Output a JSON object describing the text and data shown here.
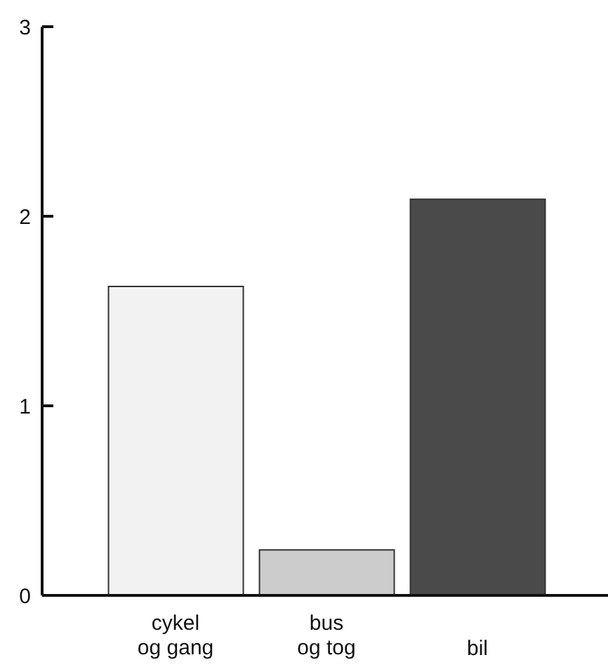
{
  "chart_data": {
    "type": "bar",
    "categories": [
      "cykel\nog gang",
      "bus\nog tog",
      "bil"
    ],
    "values": [
      1.63,
      0.24,
      2.09
    ],
    "colors": [
      "#f2f2f2",
      "#cccccc",
      "#4a4a4a"
    ],
    "ylim": [
      0,
      3
    ],
    "yticks": [
      0,
      1,
      2,
      3
    ]
  }
}
